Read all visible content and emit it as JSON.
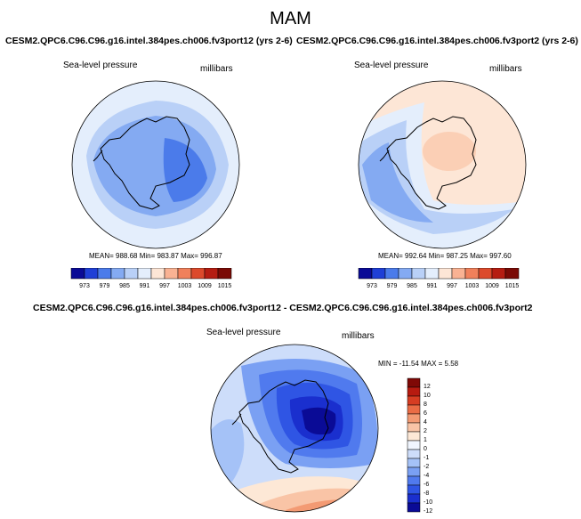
{
  "title": "MAM",
  "colors": {
    "ramp": [
      "#0a0b96",
      "#1f3fd6",
      "#4b7bea",
      "#84aaf2",
      "#b9d0f7",
      "#e4eefc",
      "#fde6d6",
      "#f9b293",
      "#f0805b",
      "#dc4a2c",
      "#b51d12",
      "#7a0a05"
    ],
    "diff": [
      "#0a0b96",
      "#1a2fce",
      "#2f55e4",
      "#507aee",
      "#7aa0f3",
      "#a5c2f7",
      "#cdddfa",
      "#f0f5fe",
      "#fde8d6",
      "#f9c4a6",
      "#f39a73",
      "#ea6c45",
      "#d63d22",
      "#b71b10",
      "#7f0906"
    ],
    "land_outline": "#000000"
  },
  "panels": [
    {
      "id": "fv3port12",
      "run_title": "CESM2.QPC6.C96.C96.g16.intel.384pes.ch006.fv3port12 (yrs 2-6)",
      "variable": "Sea-level pressure",
      "units": "millibars",
      "stats": "MEAN= 988.68  Min= 983.87  Max= 996.87",
      "colorbar_ticks": [
        "973",
        "979",
        "985",
        "991",
        "997",
        "1003",
        "1009",
        "1015"
      ]
    },
    {
      "id": "fv3port2",
      "run_title": "CESM2.QPC6.C96.C96.g16.intel.384pes.ch006.fv3port2 (yrs 2-6)",
      "variable": "Sea-level pressure",
      "units": "millibars",
      "stats": "MEAN= 992.64  Min= 987.25  Max= 997.60",
      "colorbar_ticks": [
        "973",
        "979",
        "985",
        "991",
        "997",
        "1003",
        "1009",
        "1015"
      ]
    }
  ],
  "diff": {
    "title": "CESM2.QPC6.C96.C96.g16.intel.384pes.ch006.fv3port12 - CESM2.QPC6.C96.C96.g16.intel.384pes.ch006.fv3port2",
    "variable": "Sea-level pressure",
    "units": "millibars",
    "stats": "MIN = -11.54  MAX =   5.58",
    "colorbar_ticks": [
      "12",
      "10",
      "8",
      "6",
      "4",
      "2",
      "1",
      "0",
      "-1",
      "-2",
      "-4",
      "-6",
      "-8",
      "-10",
      "-12"
    ]
  }
}
